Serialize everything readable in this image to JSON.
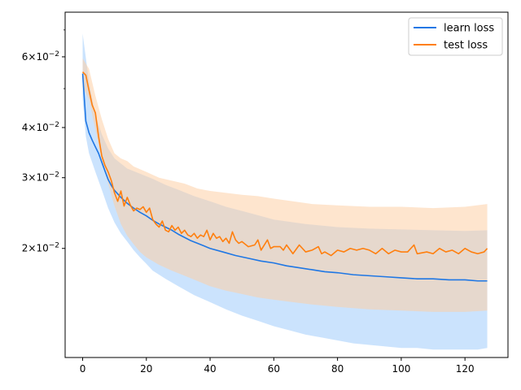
{
  "chart_data": {
    "type": "line",
    "title": "",
    "xlabel": "",
    "ylabel": "",
    "yscale": "log",
    "xlim": [
      -5.5,
      133.5
    ],
    "ylim": [
      0.0107,
      0.0775
    ],
    "grid": false,
    "legend": {
      "position": "upper-right",
      "entries": [
        "learn loss",
        "test loss"
      ]
    },
    "x_ticks": [
      {
        "value": 0,
        "label": "0"
      },
      {
        "value": 20,
        "label": "20"
      },
      {
        "value": 40,
        "label": "40"
      },
      {
        "value": 60,
        "label": "60"
      },
      {
        "value": 80,
        "label": "80"
      },
      {
        "value": 100,
        "label": "100"
      },
      {
        "value": 120,
        "label": "120"
      }
    ],
    "y_ticks": [
      {
        "value": 0.02,
        "base": "2",
        "exp": "−2"
      },
      {
        "value": 0.03,
        "base": "3",
        "exp": "−2"
      },
      {
        "value": 0.04,
        "base": "4",
        "exp": "−2"
      },
      {
        "value": 0.06,
        "base": "6",
        "exp": "−2"
      }
    ],
    "series": [
      {
        "name": "learn loss",
        "color": "#1f77e4",
        "band_color": "#a8d0fb",
        "points": [
          [
            0,
            0.0545
          ],
          [
            1,
            0.0415
          ],
          [
            2,
            0.0388
          ],
          [
            3,
            0.0372
          ],
          [
            4,
            0.0358
          ],
          [
            5,
            0.0345
          ],
          [
            6,
            0.0328
          ],
          [
            7,
            0.0312
          ],
          [
            8,
            0.0297
          ],
          [
            9,
            0.0287
          ],
          [
            10,
            0.0279
          ],
          [
            12,
            0.0268
          ],
          [
            14,
            0.0259
          ],
          [
            16,
            0.0252
          ],
          [
            18,
            0.0246
          ],
          [
            20,
            0.0241
          ],
          [
            22,
            0.0235
          ],
          [
            24,
            0.023
          ],
          [
            26,
            0.0226
          ],
          [
            28,
            0.0222
          ],
          [
            30,
            0.0217
          ],
          [
            32,
            0.0213
          ],
          [
            34,
            0.0209
          ],
          [
            36,
            0.0206
          ],
          [
            38,
            0.0203
          ],
          [
            40,
            0.02
          ],
          [
            44,
            0.0196
          ],
          [
            48,
            0.0192
          ],
          [
            52,
            0.0189
          ],
          [
            56,
            0.0186
          ],
          [
            60,
            0.0184
          ],
          [
            64,
            0.0181
          ],
          [
            68,
            0.0179
          ],
          [
            72,
            0.0177
          ],
          [
            76,
            0.0175
          ],
          [
            80,
            0.0174
          ],
          [
            85,
            0.0172
          ],
          [
            90,
            0.0171
          ],
          [
            95,
            0.017
          ],
          [
            100,
            0.0169
          ],
          [
            105,
            0.0168
          ],
          [
            110,
            0.0168
          ],
          [
            115,
            0.0167
          ],
          [
            120,
            0.0167
          ],
          [
            124,
            0.0166
          ],
          [
            127,
            0.0166
          ]
        ],
        "upper": [
          [
            0,
            0.0685
          ],
          [
            2,
            0.052
          ],
          [
            4,
            0.043
          ],
          [
            6,
            0.0385
          ],
          [
            8,
            0.0355
          ],
          [
            10,
            0.0335
          ],
          [
            14,
            0.0316
          ],
          [
            18,
            0.0307
          ],
          [
            22,
            0.0298
          ],
          [
            26,
            0.0288
          ],
          [
            30,
            0.028
          ],
          [
            35,
            0.027
          ],
          [
            40,
            0.0262
          ],
          [
            45,
            0.0254
          ],
          [
            50,
            0.0248
          ],
          [
            55,
            0.0242
          ],
          [
            60,
            0.0236
          ],
          [
            70,
            0.023
          ],
          [
            80,
            0.0226
          ],
          [
            90,
            0.0224
          ],
          [
            100,
            0.0223
          ],
          [
            110,
            0.0222
          ],
          [
            120,
            0.0221
          ],
          [
            127,
            0.0222
          ]
        ],
        "lower": [
          [
            0,
            0.047
          ],
          [
            1,
            0.038
          ],
          [
            2,
            0.0345
          ],
          [
            4,
            0.031
          ],
          [
            6,
            0.028
          ],
          [
            8,
            0.0252
          ],
          [
            10,
            0.0232
          ],
          [
            12,
            0.0218
          ],
          [
            14,
            0.0208
          ],
          [
            16,
            0.0198
          ],
          [
            18,
            0.019
          ],
          [
            20,
            0.0183
          ],
          [
            22,
            0.0176
          ],
          [
            26,
            0.0168
          ],
          [
            30,
            0.0161
          ],
          [
            35,
            0.0153
          ],
          [
            40,
            0.0147
          ],
          [
            45,
            0.0141
          ],
          [
            50,
            0.0136
          ],
          [
            55,
            0.0132
          ],
          [
            60,
            0.0128
          ],
          [
            65,
            0.0125
          ],
          [
            70,
            0.0122
          ],
          [
            75,
            0.012
          ],
          [
            80,
            0.0118
          ],
          [
            85,
            0.0116
          ],
          [
            90,
            0.0115
          ],
          [
            95,
            0.0114
          ],
          [
            100,
            0.0113
          ],
          [
            105,
            0.0113
          ],
          [
            110,
            0.0112
          ],
          [
            115,
            0.0112
          ],
          [
            120,
            0.0112
          ],
          [
            124,
            0.0112
          ],
          [
            127,
            0.0113
          ]
        ]
      },
      {
        "name": "test loss",
        "color": "#ff7f0e",
        "band_color": "#fdcfa5",
        "points": [
          [
            0,
            0.055
          ],
          [
            1,
            0.054
          ],
          [
            2,
            0.0495
          ],
          [
            3,
            0.0455
          ],
          [
            4,
            0.0435
          ],
          [
            5,
            0.038
          ],
          [
            6,
            0.034
          ],
          [
            7,
            0.0322
          ],
          [
            8,
            0.031
          ],
          [
            9,
            0.0295
          ],
          [
            10,
            0.0275
          ],
          [
            11,
            0.0262
          ],
          [
            12,
            0.0278
          ],
          [
            13,
            0.0255
          ],
          [
            14,
            0.0268
          ],
          [
            15,
            0.0256
          ],
          [
            16,
            0.0248
          ],
          [
            17,
            0.0252
          ],
          [
            18,
            0.025
          ],
          [
            19,
            0.0254
          ],
          [
            20,
            0.0246
          ],
          [
            21,
            0.0252
          ],
          [
            22,
            0.0236
          ],
          [
            23,
            0.023
          ],
          [
            24,
            0.0226
          ],
          [
            25,
            0.0234
          ],
          [
            26,
            0.0222
          ],
          [
            27,
            0.022
          ],
          [
            28,
            0.0228
          ],
          [
            29,
            0.0222
          ],
          [
            30,
            0.0226
          ],
          [
            31,
            0.0218
          ],
          [
            32,
            0.0222
          ],
          [
            33,
            0.0216
          ],
          [
            34,
            0.0214
          ],
          [
            35,
            0.0218
          ],
          [
            36,
            0.0212
          ],
          [
            37,
            0.0216
          ],
          [
            38,
            0.0214
          ],
          [
            39,
            0.0222
          ],
          [
            40,
            0.021
          ],
          [
            41,
            0.0218
          ],
          [
            42,
            0.0212
          ],
          [
            43,
            0.0214
          ],
          [
            44,
            0.0208
          ],
          [
            45,
            0.0212
          ],
          [
            46,
            0.0206
          ],
          [
            47,
            0.022
          ],
          [
            48,
            0.021
          ],
          [
            49,
            0.0206
          ],
          [
            50,
            0.0208
          ],
          [
            52,
            0.0202
          ],
          [
            54,
            0.0204
          ],
          [
            55,
            0.021
          ],
          [
            56,
            0.0198
          ],
          [
            58,
            0.021
          ],
          [
            59,
            0.02
          ],
          [
            60,
            0.0202
          ],
          [
            62,
            0.0202
          ],
          [
            63,
            0.0198
          ],
          [
            64,
            0.0204
          ],
          [
            66,
            0.0194
          ],
          [
            68,
            0.0204
          ],
          [
            70,
            0.0196
          ],
          [
            72,
            0.0198
          ],
          [
            74,
            0.0202
          ],
          [
            75,
            0.0194
          ],
          [
            76,
            0.0196
          ],
          [
            78,
            0.0192
          ],
          [
            80,
            0.0198
          ],
          [
            82,
            0.0196
          ],
          [
            84,
            0.02
          ],
          [
            86,
            0.0198
          ],
          [
            88,
            0.02
          ],
          [
            90,
            0.0198
          ],
          [
            92,
            0.0194
          ],
          [
            94,
            0.02
          ],
          [
            96,
            0.0194
          ],
          [
            98,
            0.0198
          ],
          [
            100,
            0.0196
          ],
          [
            102,
            0.0196
          ],
          [
            104,
            0.0204
          ],
          [
            105,
            0.0194
          ],
          [
            108,
            0.0196
          ],
          [
            110,
            0.0194
          ],
          [
            112,
            0.02
          ],
          [
            114,
            0.0196
          ],
          [
            116,
            0.0198
          ],
          [
            118,
            0.0194
          ],
          [
            120,
            0.02
          ],
          [
            122,
            0.0196
          ],
          [
            124,
            0.0194
          ],
          [
            126,
            0.0196
          ],
          [
            127,
            0.02
          ]
        ],
        "upper": [
          [
            0,
            0.0595
          ],
          [
            2,
            0.056
          ],
          [
            4,
            0.048
          ],
          [
            6,
            0.042
          ],
          [
            8,
            0.0375
          ],
          [
            10,
            0.0345
          ],
          [
            12,
            0.0335
          ],
          [
            14,
            0.033
          ],
          [
            16,
            0.032
          ],
          [
            18,
            0.0315
          ],
          [
            20,
            0.031
          ],
          [
            24,
            0.03
          ],
          [
            28,
            0.0295
          ],
          [
            32,
            0.029
          ],
          [
            36,
            0.0282
          ],
          [
            40,
            0.0278
          ],
          [
            45,
            0.0275
          ],
          [
            50,
            0.0272
          ],
          [
            55,
            0.027
          ],
          [
            60,
            0.0266
          ],
          [
            66,
            0.0262
          ],
          [
            72,
            0.0258
          ],
          [
            80,
            0.0256
          ],
          [
            90,
            0.0254
          ],
          [
            100,
            0.0254
          ],
          [
            110,
            0.0252
          ],
          [
            120,
            0.0254
          ],
          [
            127,
            0.0258
          ]
        ],
        "lower": [
          [
            0,
            0.0505
          ],
          [
            2,
            0.047
          ],
          [
            4,
            0.0395
          ],
          [
            6,
            0.033
          ],
          [
            8,
            0.029
          ],
          [
            10,
            0.0255
          ],
          [
            12,
            0.023
          ],
          [
            14,
            0.0215
          ],
          [
            16,
            0.0205
          ],
          [
            18,
            0.0196
          ],
          [
            20,
            0.019
          ],
          [
            24,
            0.0182
          ],
          [
            28,
            0.0176
          ],
          [
            32,
            0.0171
          ],
          [
            36,
            0.0166
          ],
          [
            40,
            0.0161
          ],
          [
            45,
            0.0157
          ],
          [
            50,
            0.0154
          ],
          [
            55,
            0.0151
          ],
          [
            60,
            0.0149
          ],
          [
            66,
            0.0147
          ],
          [
            72,
            0.0145
          ],
          [
            80,
            0.0143
          ],
          [
            90,
            0.0141
          ],
          [
            100,
            0.014
          ],
          [
            110,
            0.0139
          ],
          [
            120,
            0.0139
          ],
          [
            127,
            0.014
          ]
        ]
      }
    ]
  }
}
